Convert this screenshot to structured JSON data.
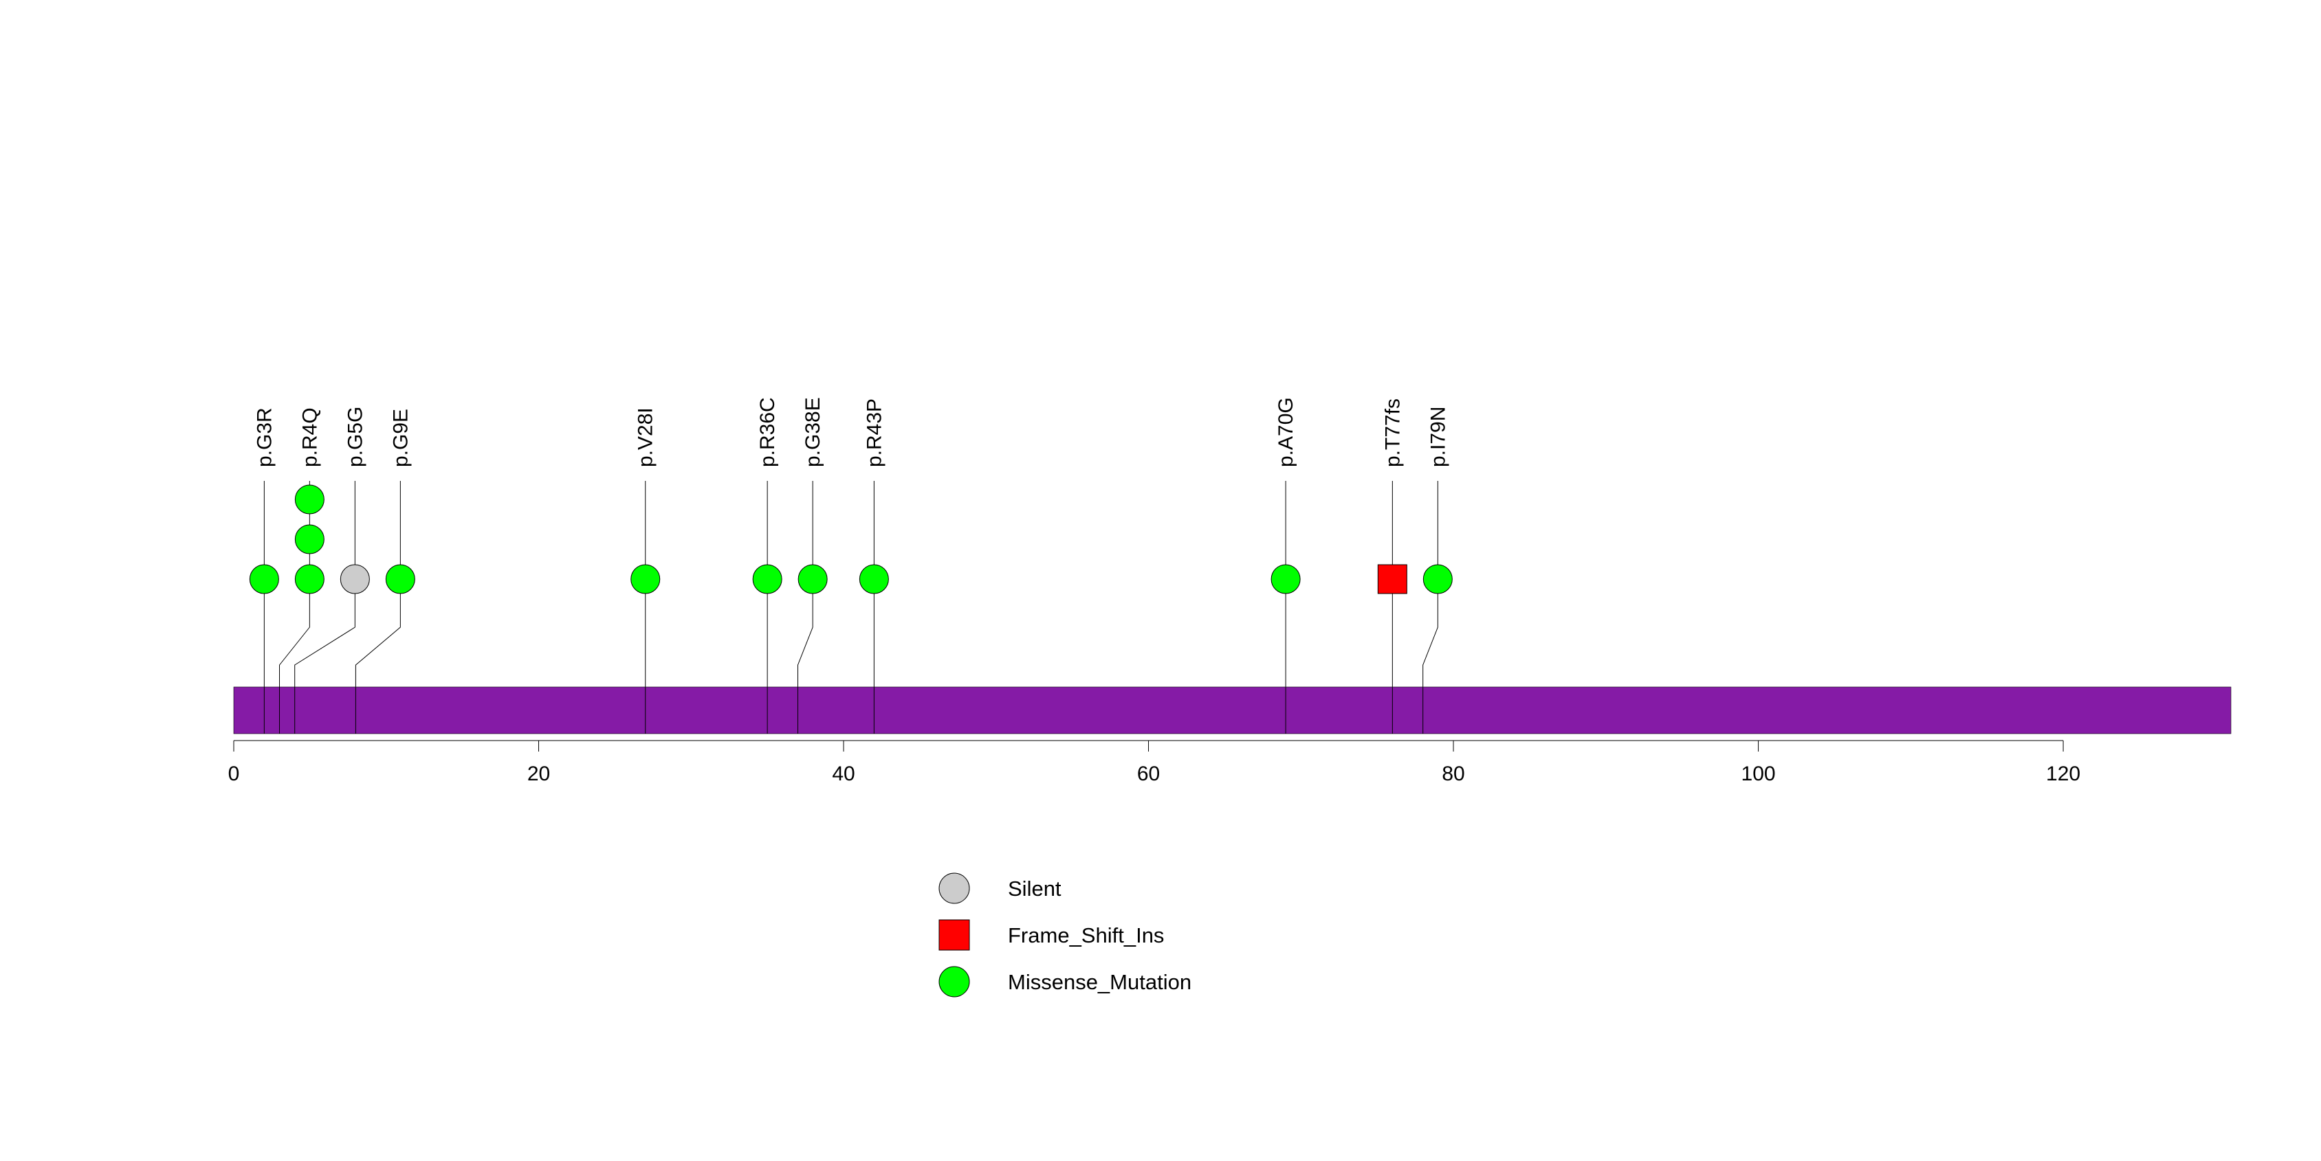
{
  "chart_data": {
    "type": "lollipop",
    "title": "",
    "protein_length": 131,
    "xlim": [
      0,
      131
    ],
    "x_ticks": [
      0,
      20,
      40,
      60,
      80,
      100,
      120
    ],
    "x_tick_labels": [
      "0",
      "20",
      "40",
      "60",
      "80",
      "100",
      "120"
    ],
    "backbone_color": "#851BA6",
    "mutations": [
      {
        "label": "p.G3R",
        "position": 2,
        "type": "Missense_Mutation",
        "count": 1
      },
      {
        "label": "p.R4Q",
        "position": 3,
        "type": "Missense_Mutation",
        "count": 3
      },
      {
        "label": "p.G5G",
        "position": 4,
        "type": "Silent",
        "count": 1
      },
      {
        "label": "p.G9E",
        "position": 8,
        "type": "Missense_Mutation",
        "count": 1
      },
      {
        "label": "p.V28I",
        "position": 27,
        "type": "Missense_Mutation",
        "count": 1
      },
      {
        "label": "p.R36C",
        "position": 35,
        "type": "Missense_Mutation",
        "count": 1
      },
      {
        "label": "p.G38E",
        "position": 37,
        "type": "Missense_Mutation",
        "count": 1
      },
      {
        "label": "p.R43P",
        "position": 42,
        "type": "Missense_Mutation",
        "count": 1
      },
      {
        "label": "p.A70G",
        "position": 69,
        "type": "Missense_Mutation",
        "count": 1
      },
      {
        "label": "p.T77fs",
        "position": 76,
        "type": "Frame_Shift_Ins",
        "count": 1
      },
      {
        "label": "p.I79N",
        "position": 78,
        "type": "Missense_Mutation",
        "count": 1
      }
    ],
    "legend": [
      {
        "label": "Silent",
        "shape": "circle",
        "color": "#CCCCCC"
      },
      {
        "label": "Frame_Shift_Ins",
        "shape": "square",
        "color": "#FF0000"
      },
      {
        "label": "Missense_Mutation",
        "shape": "circle",
        "color": "#00FF00"
      }
    ]
  }
}
